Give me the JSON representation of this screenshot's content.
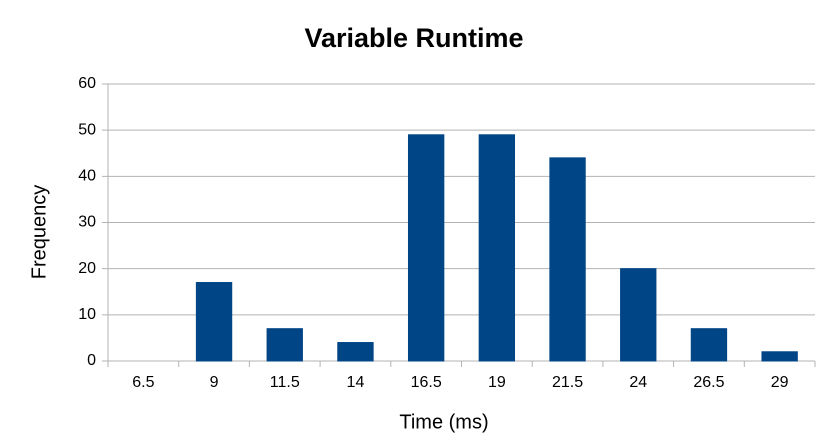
{
  "chart_data": {
    "type": "bar",
    "title": "Variable Runtime",
    "x_label": "Time (ms)",
    "y_label": "Frequency",
    "categories": [
      "6.5",
      "9",
      "11.5",
      "14",
      "16.5",
      "19",
      "21.5",
      "24",
      "26.5",
      "29"
    ],
    "values": [
      0,
      17,
      7,
      4,
      49,
      49,
      44,
      20,
      7,
      2
    ],
    "color": "#004586",
    "ylim": [
      0,
      60
    ],
    "yticks": [
      0,
      10,
      20,
      30,
      40,
      50,
      60
    ],
    "grid": true
  }
}
